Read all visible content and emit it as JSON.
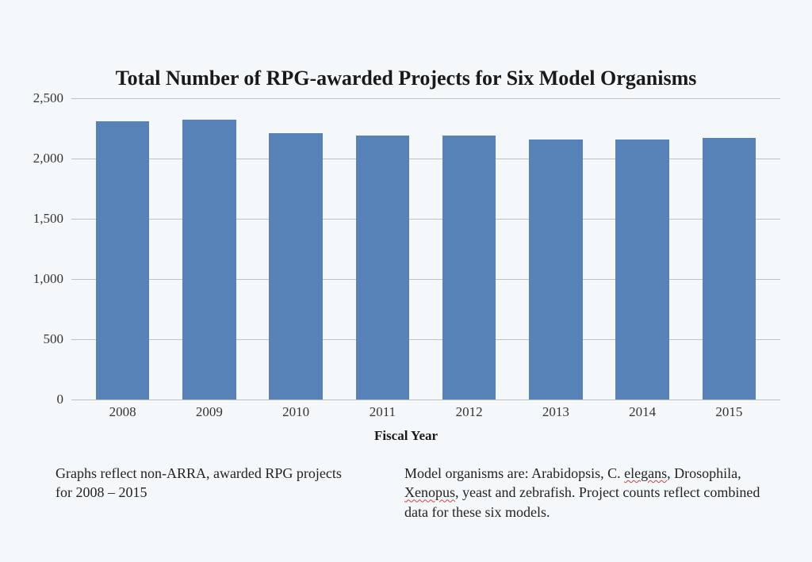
{
  "chart": {
    "type": "bar",
    "title": "Total Number of RPG-awarded Projects for Six Model Organisms",
    "title_fontsize": 26,
    "title_weight": "bold",
    "x_axis_label": "Fiscal Year",
    "x_axis_label_fontsize": 17,
    "categories": [
      "2008",
      "2009",
      "2010",
      "2011",
      "2012",
      "2013",
      "2014",
      "2015"
    ],
    "values": [
      2310,
      2320,
      2210,
      2190,
      2190,
      2160,
      2160,
      2170
    ],
    "bar_color": "#5682b8",
    "background_color": "#f5f8fb",
    "grid_color": "#c0c0c0",
    "ylim": [
      0,
      2500
    ],
    "yticks": [
      0,
      500,
      1000,
      1500,
      2000,
      2500
    ],
    "ytick_labels": [
      "0",
      "500",
      "1,000",
      "1,500",
      "2,000",
      "2,500"
    ],
    "tick_fontsize": 17,
    "tick_color": "#333333",
    "bar_width_ratio": 0.62
  },
  "footer": {
    "left_text_pre": "Graphs reflect non-ARRA, awarded RPG projects for 2008 ",
    "left_text_dash": "–",
    "left_text_post": " 2015",
    "right_a": "Model organisms are: Arabidopsis, C. ",
    "right_b": "elegans",
    "right_c": ", Drosophila, ",
    "right_d": "Xenopus",
    "right_e": ", yeast and zebrafish. Project counts reflect combined data for these six models.",
    "fontsize": 18,
    "text_color": "#222222",
    "squiggle_color": "#d04040"
  }
}
